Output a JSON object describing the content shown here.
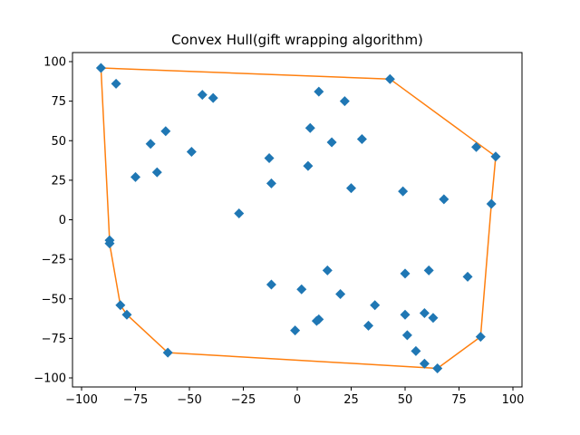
{
  "chart_data": {
    "type": "scatter",
    "title": "Convex Hull(gift wrapping algorithm)",
    "xlabel": "",
    "ylabel": "",
    "xlim": [
      -100,
      100
    ],
    "ylim": [
      -100,
      100
    ],
    "xticks": [
      -100,
      -75,
      -50,
      -25,
      0,
      25,
      50,
      75,
      100
    ],
    "yticks": [
      -100,
      -75,
      -50,
      -25,
      0,
      25,
      50,
      75,
      100
    ],
    "xtick_labels": [
      "−100",
      "−75",
      "−50",
      "−25",
      "0",
      "25",
      "50",
      "75",
      "100"
    ],
    "ytick_labels": [
      "−100",
      "−75",
      "−50",
      "−25",
      "0",
      "25",
      "50",
      "75",
      "100"
    ],
    "grid": false,
    "series": [
      {
        "marker": "diamond",
        "color": "#1f77b4",
        "points": [
          [
            -91,
            96
          ],
          [
            -84,
            86
          ],
          [
            -44,
            79
          ],
          [
            -39,
            77
          ],
          [
            10,
            81
          ],
          [
            22,
            75
          ],
          [
            43,
            89
          ],
          [
            -61,
            56
          ],
          [
            -68,
            48
          ],
          [
            -49,
            43
          ],
          [
            -65,
            30
          ],
          [
            -75,
            27
          ],
          [
            6,
            58
          ],
          [
            16,
            49
          ],
          [
            30,
            51
          ],
          [
            -13,
            39
          ],
          [
            5,
            34
          ],
          [
            -12,
            23
          ],
          [
            25,
            20
          ],
          [
            49,
            18
          ],
          [
            83,
            46
          ],
          [
            92,
            40
          ],
          [
            68,
            13
          ],
          [
            90,
            10
          ],
          [
            -27,
            4
          ],
          [
            -87,
            -13
          ],
          [
            -87,
            -15
          ],
          [
            14,
            -32
          ],
          [
            -12,
            -41
          ],
          [
            2,
            -44
          ],
          [
            20,
            -47
          ],
          [
            50,
            -34
          ],
          [
            61,
            -32
          ],
          [
            79,
            -36
          ],
          [
            -82,
            -54
          ],
          [
            -79,
            -60
          ],
          [
            36,
            -54
          ],
          [
            50,
            -60
          ],
          [
            59,
            -59
          ],
          [
            63,
            -62
          ],
          [
            10,
            -63
          ],
          [
            9,
            -64
          ],
          [
            33,
            -67
          ],
          [
            -1,
            -70
          ],
          [
            51,
            -73
          ],
          [
            85,
            -74
          ],
          [
            -60,
            -84
          ],
          [
            55,
            -83
          ],
          [
            59,
            -91
          ],
          [
            65,
            -94
          ]
        ]
      },
      {
        "type": "line",
        "color": "#ff7f0e",
        "points": [
          [
            -91,
            96
          ],
          [
            43,
            89
          ],
          [
            92,
            40
          ],
          [
            90,
            10
          ],
          [
            85,
            -74
          ],
          [
            65,
            -94
          ],
          [
            -60,
            -84
          ],
          [
            -79,
            -60
          ],
          [
            -82,
            -54
          ],
          [
            -87,
            -15
          ],
          [
            -87,
            -13
          ],
          [
            -91,
            96
          ]
        ]
      }
    ]
  }
}
